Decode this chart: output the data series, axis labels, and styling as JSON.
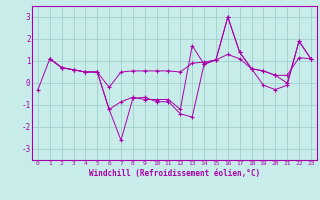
{
  "background_color": "#c8ecea",
  "grid_color": "#a0d0cc",
  "line_color": "#aa00aa",
  "marker": "+",
  "xlabel": "Windchill (Refroidissement éolien,°C)",
  "xlim": [
    -0.5,
    23.5
  ],
  "ylim": [
    -3.5,
    3.5
  ],
  "yticks": [
    -3,
    -2,
    -1,
    0,
    1,
    2,
    3
  ],
  "xticks": [
    0,
    1,
    2,
    3,
    4,
    5,
    6,
    7,
    8,
    9,
    10,
    11,
    12,
    13,
    14,
    15,
    16,
    17,
    18,
    19,
    20,
    21,
    22,
    23
  ],
  "series": [
    [
      null,
      1.1,
      0.7,
      0.6,
      0.5,
      0.5,
      -0.2,
      0.5,
      0.55,
      0.55,
      0.55,
      0.55,
      0.5,
      0.9,
      0.95,
      1.05,
      1.3,
      1.1,
      0.65,
      0.55,
      0.35,
      0.35,
      1.15,
      1.1
    ],
    [
      null,
      1.1,
      0.7,
      0.6,
      0.5,
      0.5,
      -1.2,
      -0.85,
      -0.65,
      -0.75,
      -0.75,
      -0.75,
      -1.2,
      1.7,
      0.85,
      1.05,
      3.0,
      1.4,
      0.65,
      0.55,
      0.35,
      0.0,
      1.9,
      1.1
    ],
    [
      -0.3,
      1.1,
      0.7,
      0.6,
      0.5,
      0.5,
      -1.2,
      -2.6,
      -0.7,
      -0.65,
      -0.85,
      -0.85,
      -1.4,
      -1.55,
      0.85,
      1.05,
      3.0,
      1.4,
      0.65,
      -0.1,
      -0.3,
      -0.1,
      1.9,
      1.1
    ]
  ]
}
